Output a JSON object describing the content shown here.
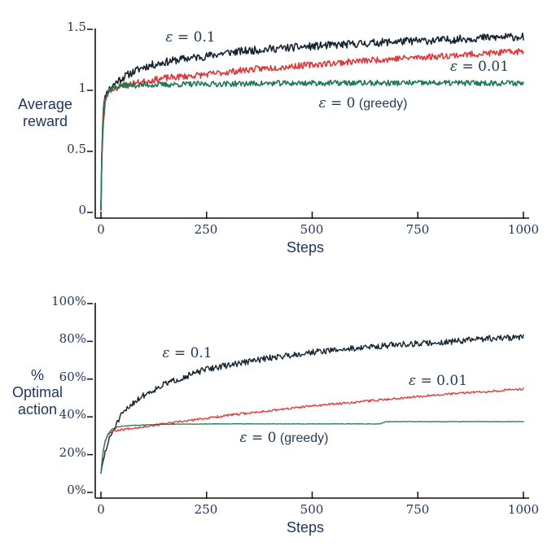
{
  "figure": {
    "background": "#ffffff"
  },
  "colors": {
    "text": "#21375f",
    "axis": "#111111",
    "eps_0_1": "#16242f",
    "eps_0_01": "#dc3a3c",
    "greedy": "#1d7a50"
  },
  "chart_data": [
    {
      "type": "line",
      "title": "",
      "xlabel": "Steps",
      "ylabel_lines": [
        "Average",
        "reward"
      ],
      "xlim": [
        0,
        1000
      ],
      "ylim": [
        0,
        1.5
      ],
      "grid": false,
      "legend_position": "inline-annotations",
      "x_ticks": [
        {
          "value": 0,
          "label": "0"
        },
        {
          "value": 250,
          "label": "250"
        },
        {
          "value": 500,
          "label": "500"
        },
        {
          "value": 750,
          "label": "750"
        },
        {
          "value": 1000,
          "label": "1000"
        }
      ],
      "y_ticks": [
        {
          "value": 1.5,
          "label": "1.5"
        },
        {
          "value": 1,
          "label": "1"
        },
        {
          "value": 0.5,
          "label": "0.5"
        },
        {
          "value": 0,
          "label": "0"
        }
      ],
      "labels": {
        "eps_0_1": {
          "sym": "ε",
          "rest": " = 0.1",
          "text": ""
        },
        "eps_0_01": {
          "sym": "ε",
          "rest": " = 0.01",
          "text": ""
        },
        "greedy": {
          "sym": "ε",
          "rest": " = 0",
          "text": " (greedy)"
        }
      },
      "series": [
        {
          "name": "ε = 0.1",
          "color_key": "eps_0_1",
          "seed": 11,
          "noise": 0.032,
          "stroke_width": 1.6,
          "anchor_points": [
            [
              0,
              0
            ],
            [
              1,
              0.25
            ],
            [
              3,
              0.6
            ],
            [
              6,
              0.85
            ],
            [
              12,
              0.95
            ],
            [
              20,
              0.99
            ],
            [
              40,
              1.06
            ],
            [
              70,
              1.12
            ],
            [
              100,
              1.17
            ],
            [
              150,
              1.21
            ],
            [
              200,
              1.24
            ],
            [
              250,
              1.26
            ],
            [
              300,
              1.29
            ],
            [
              400,
              1.32
            ],
            [
              500,
              1.34
            ],
            [
              600,
              1.36
            ],
            [
              700,
              1.38
            ],
            [
              800,
              1.39
            ],
            [
              900,
              1.41
            ],
            [
              1000,
              1.42
            ]
          ]
        },
        {
          "name": "ε = 0.01",
          "color_key": "eps_0_01",
          "seed": 23,
          "noise": 0.026,
          "stroke_width": 1.6,
          "anchor_points": [
            [
              0,
              0
            ],
            [
              2,
              0.45
            ],
            [
              5,
              0.75
            ],
            [
              10,
              0.9
            ],
            [
              20,
              0.98
            ],
            [
              50,
              1.02
            ],
            [
              100,
              1.05
            ],
            [
              150,
              1.08
            ],
            [
              250,
              1.11
            ],
            [
              350,
              1.15
            ],
            [
              500,
              1.19
            ],
            [
              650,
              1.23
            ],
            [
              800,
              1.26
            ],
            [
              1000,
              1.3
            ]
          ]
        },
        {
          "name": "ε = 0 (greedy)",
          "color_key": "greedy",
          "seed": 37,
          "noise": 0.023,
          "stroke_width": 1.6,
          "anchor_points": [
            [
              0,
              0
            ],
            [
              2,
              0.4
            ],
            [
              5,
              0.7
            ],
            [
              10,
              0.9
            ],
            [
              20,
              0.99
            ],
            [
              50,
              1.02
            ],
            [
              200,
              1.03
            ],
            [
              500,
              1.04
            ],
            [
              1000,
              1.04
            ]
          ]
        }
      ]
    },
    {
      "type": "line",
      "title": "",
      "xlabel": "Steps",
      "ylabel_lines": [
        "%",
        "Optimal",
        "action"
      ],
      "xlim": [
        0,
        1000
      ],
      "ylim": [
        0,
        100
      ],
      "grid": false,
      "legend_position": "inline-annotations",
      "x_ticks": [
        {
          "value": 0,
          "label": "0"
        },
        {
          "value": 250,
          "label": "250"
        },
        {
          "value": 500,
          "label": "500"
        },
        {
          "value": 750,
          "label": "750"
        },
        {
          "value": 1000,
          "label": "1000"
        }
      ],
      "y_ticks": [
        {
          "value": 100,
          "label": "100%"
        },
        {
          "value": 80,
          "label": "80%"
        },
        {
          "value": 60,
          "label": "60%"
        },
        {
          "value": 40,
          "label": "40%"
        },
        {
          "value": 20,
          "label": "20%"
        },
        {
          "value": 0,
          "label": "0%"
        }
      ],
      "labels": {
        "eps_0_1": {
          "sym": "ε",
          "rest": " = 0.1",
          "text": ""
        },
        "eps_0_01": {
          "sym": "ε",
          "rest": " = 0.01",
          "text": ""
        },
        "greedy": {
          "sym": "ε",
          "rest": " = 0",
          "text": " (greedy)"
        }
      },
      "series": [
        {
          "name": "ε = 0.1",
          "color_key": "eps_0_1",
          "seed": 51,
          "noise": 1.6,
          "stroke_width": 1.4,
          "anchor_points": [
            [
              0,
              9
            ],
            [
              5,
              15
            ],
            [
              10,
              20
            ],
            [
              20,
              27
            ],
            [
              30,
              32
            ],
            [
              50,
              40
            ],
            [
              75,
              46
            ],
            [
              100,
              50
            ],
            [
              150,
              56
            ],
            [
              200,
              60
            ],
            [
              250,
              64
            ],
            [
              300,
              66
            ],
            [
              350,
              68
            ],
            [
              400,
              70
            ],
            [
              500,
              73
            ],
            [
              600,
              75
            ],
            [
              700,
              77
            ],
            [
              800,
              78
            ],
            [
              900,
              80
            ],
            [
              1000,
              81
            ]
          ]
        },
        {
          "name": "ε = 0.01",
          "color_key": "eps_0_01",
          "seed": 67,
          "noise": 0.6,
          "stroke_width": 1.3,
          "anchor_points": [
            [
              0,
              9
            ],
            [
              3,
              16
            ],
            [
              6,
              22
            ],
            [
              10,
              26
            ],
            [
              15,
              29
            ],
            [
              25,
              31
            ],
            [
              50,
              32
            ],
            [
              100,
              33.5
            ],
            [
              150,
              35
            ],
            [
              200,
              36.5
            ],
            [
              250,
              38
            ],
            [
              300,
              39.5
            ],
            [
              400,
              42
            ],
            [
              500,
              44.5
            ],
            [
              600,
              46.5
            ],
            [
              700,
              48.5
            ],
            [
              800,
              50.5
            ],
            [
              900,
              52
            ],
            [
              1000,
              53.5
            ]
          ]
        },
        {
          "name": "ε = 0 (greedy)",
          "color_key": "greedy",
          "seed": 83,
          "noise": 0.12,
          "stroke_width": 1.3,
          "anchor_points": [
            [
              0,
              9
            ],
            [
              3,
              16
            ],
            [
              8,
              24
            ],
            [
              15,
              29
            ],
            [
              25,
              32
            ],
            [
              40,
              33.5
            ],
            [
              80,
              34.3
            ],
            [
              150,
              34.8
            ],
            [
              300,
              35
            ],
            [
              660,
              35
            ],
            [
              675,
              36.2
            ],
            [
              1000,
              36.2
            ]
          ]
        }
      ]
    }
  ]
}
